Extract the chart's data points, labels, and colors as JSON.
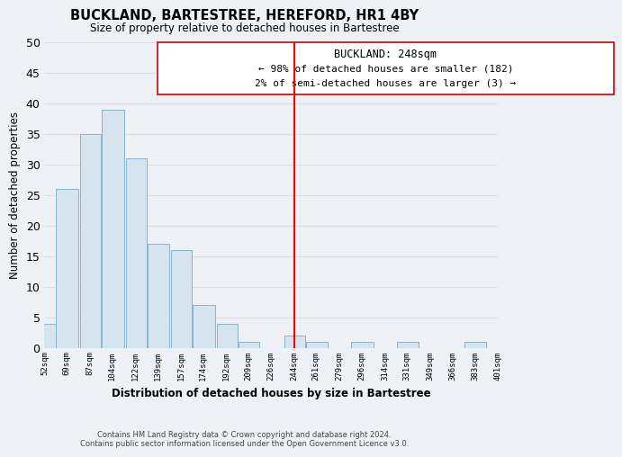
{
  "title": "BUCKLAND, BARTESTREE, HEREFORD, HR1 4BY",
  "subtitle": "Size of property relative to detached houses in Bartestree",
  "xlabel": "Distribution of detached houses by size in Bartestree",
  "ylabel": "Number of detached properties",
  "bar_color": "#d6e4f0",
  "bar_edge_color": "#8ab4cc",
  "vline_x": 244,
  "vline_color": "red",
  "bins": [
    52,
    69,
    87,
    104,
    122,
    139,
    157,
    174,
    192,
    209,
    226,
    244,
    261,
    279,
    296,
    314,
    331,
    349,
    366,
    383,
    401
  ],
  "counts": [
    4,
    26,
    35,
    39,
    31,
    17,
    16,
    7,
    4,
    1,
    0,
    2,
    1,
    0,
    1,
    0,
    1,
    0,
    0,
    1
  ],
  "tick_labels": [
    "52sqm",
    "69sqm",
    "87sqm",
    "104sqm",
    "122sqm",
    "139sqm",
    "157sqm",
    "174sqm",
    "192sqm",
    "209sqm",
    "226sqm",
    "244sqm",
    "261sqm",
    "279sqm",
    "296sqm",
    "314sqm",
    "331sqm",
    "349sqm",
    "366sqm",
    "383sqm",
    "401sqm"
  ],
  "annotation_title": "BUCKLAND: 248sqm",
  "annotation_line1": "← 98% of detached houses are smaller (182)",
  "annotation_line2": "2% of semi-detached houses are larger (3) →",
  "ylim": [
    0,
    50
  ],
  "yticks": [
    0,
    5,
    10,
    15,
    20,
    25,
    30,
    35,
    40,
    45,
    50
  ],
  "footer_line1": "Contains HM Land Registry data © Crown copyright and database right 2024.",
  "footer_line2": "Contains public sector information licensed under the Open Government Licence v3.0.",
  "background_color": "#eef2f7",
  "grid_color": "#d8dfe8"
}
